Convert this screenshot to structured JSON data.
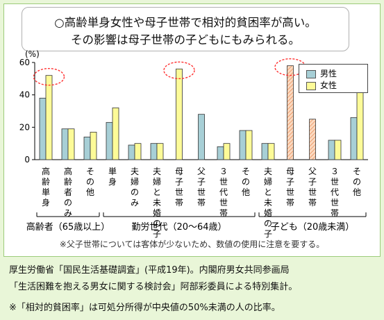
{
  "headline": {
    "line1": "○高齢単身女性や母子世帯で相対的貧困率が高い。",
    "line2": "その影響は母子世帯の子どもにもみられる。"
  },
  "colors": {
    "male": "#a7cfd6",
    "female": "#fdfb98",
    "child": "#fbd9c0",
    "child_hatch": "#e47a3d",
    "highlight": "#ff3030"
  },
  "chart_data": {
    "type": "bar",
    "yunit": "(%)",
    "ylim": [
      0,
      60
    ],
    "yticks": [
      0,
      20,
      40,
      60
    ],
    "legend_placement": "top-right",
    "categories": [
      "高齢単身",
      "高齢者のみ",
      "その他",
      "単身",
      "夫婦のみ",
      "夫婦と未婚の子",
      "母子世帯",
      "父子世帯",
      "３世代世帯",
      "その他",
      "夫婦と未婚の子",
      "母子世帯",
      "父子世帯",
      "３世代世帯",
      "その他"
    ],
    "groups": [
      {
        "label": "高齢者（65歳以上）",
        "count": 3
      },
      {
        "label": "勤労世代（20～64歳）",
        "count": 7
      },
      {
        "label": "子ども（20歳未満）",
        "count": 5
      }
    ],
    "series": [
      {
        "name": "男性",
        "values": [
          38,
          19,
          14,
          23,
          9,
          10,
          null,
          28,
          8,
          18,
          10,
          null,
          null,
          12,
          26
        ]
      },
      {
        "name": "女性",
        "values": [
          52,
          19,
          17,
          32,
          10,
          10,
          56,
          null,
          10,
          18,
          10,
          null,
          null,
          12,
          44
        ]
      }
    ],
    "combined": [
      null,
      null,
      null,
      null,
      null,
      null,
      null,
      null,
      null,
      null,
      null,
      58,
      25,
      null,
      null
    ],
    "highlights": [
      0,
      6,
      11
    ]
  },
  "note": "※父子世帯については客体が少ないため、数値の使用に注意を要する。",
  "footer": {
    "line1": "厚生労働省「国民生活基礎調査」(平成19年)。内閣府男女共同参画局",
    "line2": "「生活困難を抱える男女に関する検討会」阿部彩委員による特別集計。",
    "line3": "※「相対的貧困率」は可処分所得が中央値の50%未満の人の比率。"
  }
}
